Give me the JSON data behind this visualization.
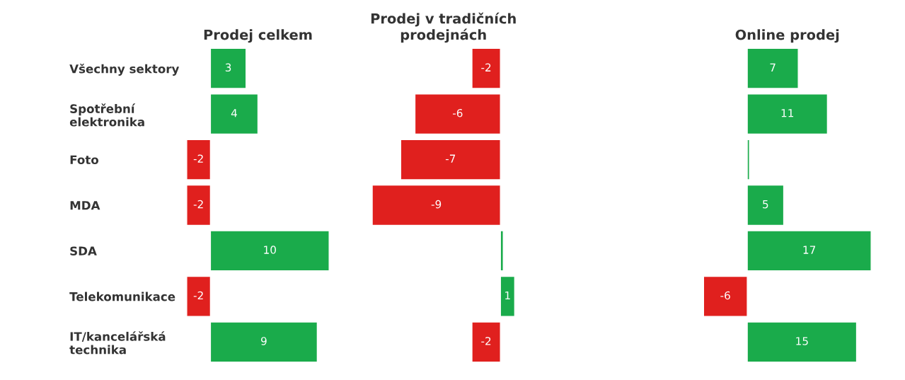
{
  "chart_data": [
    {
      "type": "bar",
      "orientation": "horizontal",
      "title": "Prodej celkem",
      "categories": [
        "Všechny sektory",
        "Spotřební\nelektronika",
        "Foto",
        "MDA",
        "SDA",
        "Telekomunikace",
        "IT/kancelářská\ntechnika"
      ],
      "values": [
        3,
        4,
        -2,
        -2,
        10,
        -2,
        9
      ],
      "colors": [
        "#1aab4b",
        "#1aab4b",
        "#e0201e",
        "#e0201e",
        "#1aab4b",
        "#e0201e",
        "#1aab4b"
      ],
      "data_labels": true,
      "tick_labels": "y"
    },
    {
      "type": "bar",
      "orientation": "horizontal",
      "title": "Prodej v tradičních\nprodejnách",
      "categories": [
        null,
        null,
        null,
        null,
        null,
        null,
        null
      ],
      "values": [
        -2,
        -6,
        -7,
        -9,
        0.2,
        1,
        -2
      ],
      "value_labels": [
        "-2",
        "-6",
        "-7",
        "-9",
        null,
        "1",
        "-2"
      ],
      "colors": [
        "#e0201e",
        "#e0201e",
        "#e0201e",
        "#e0201e",
        "#1aab4b",
        "#1aab4b",
        "#e0201e"
      ],
      "tick_labels": false
    },
    {
      "type": "bar",
      "orientation": "horizontal",
      "title": "Online prodej",
      "categories": [
        null,
        null,
        null,
        null,
        null,
        null,
        null
      ],
      "values": [
        7,
        11,
        0.3,
        5,
        17,
        -6,
        15
      ],
      "value_labels": [
        "7",
        "11",
        null,
        "5",
        "17",
        "-6",
        "15"
      ],
      "colors": [
        "#1aab4b",
        "#1aab4b",
        "#1aab4b",
        "#1aab4b",
        "#1aab4b",
        "#e0201e",
        "#1aab4b"
      ],
      "tick_labels": false
    }
  ]
}
